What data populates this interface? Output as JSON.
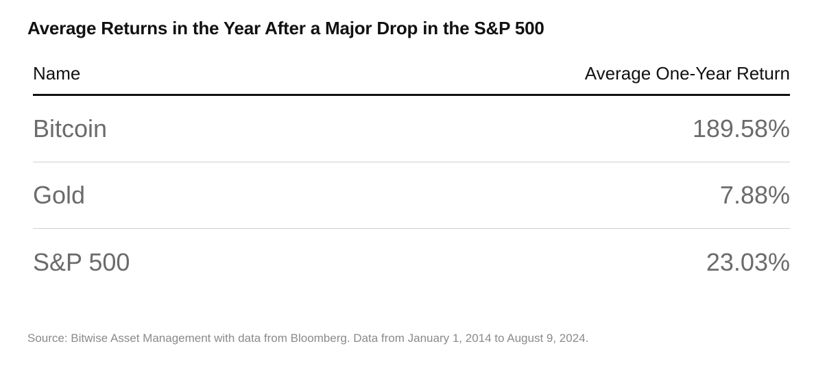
{
  "chart_data": {
    "type": "table",
    "title": "Average Returns in the Year After a Major Drop in the S&P 500",
    "columns": [
      "Name",
      "Average One-Year Return"
    ],
    "rows": [
      {
        "name": "Bitcoin",
        "value": "189.58%"
      },
      {
        "name": "Gold",
        "value": "7.88%"
      },
      {
        "name": "S&P 500",
        "value": "23.03%"
      }
    ],
    "source": "Source: Bitwise Asset Management with data from Bloomberg. Data from January 1, 2014 to August 9, 2024."
  }
}
